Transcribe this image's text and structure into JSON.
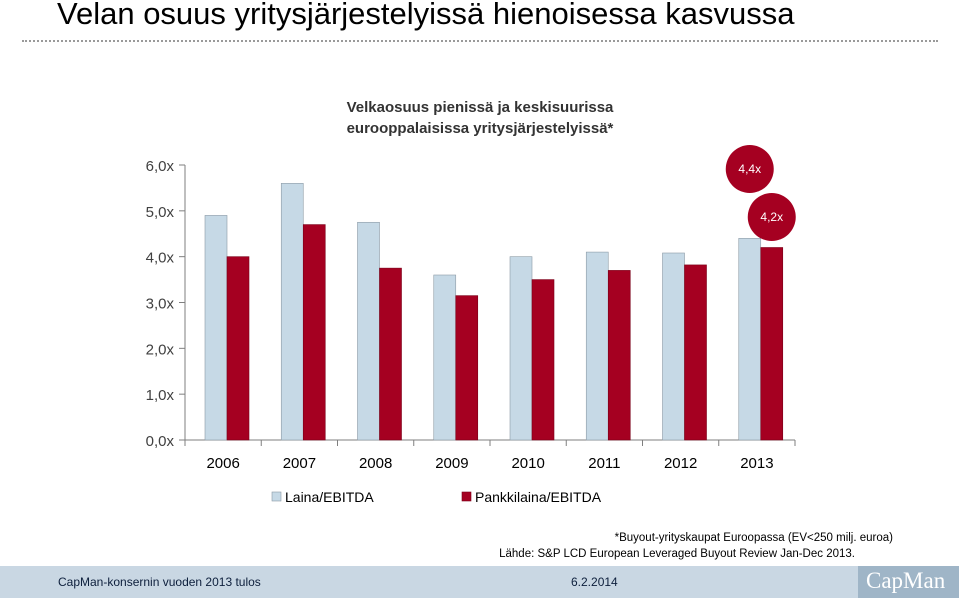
{
  "page": {
    "title": "Velan osuus yritysjärjestelyissä hienoisessa kasvussa",
    "footnote": "*Buyout-yrityskaupat Euroopassa (EV<250 milj. euroa)",
    "source": "Lähde: S&P LCD European Leveraged Buyout Review Jan-Dec 2013.",
    "footer_left": "CapMan-konsernin vuoden 2013 tulos",
    "footer_date": "6.2.2014",
    "logo": "CapMan"
  },
  "chart_data": {
    "type": "bar",
    "title": "Velkaosuus pienissä ja keskisuurissa eurooppalaisissa yritysjärjestelyissä*",
    "title_lines": [
      "Velkaosuus pienissä ja keskisuurissa",
      "eurooppalaisissa yritysjärjestelyissä*"
    ],
    "categories": [
      "2006",
      "2007",
      "2008",
      "2009",
      "2010",
      "2011",
      "2012",
      "2013"
    ],
    "series": [
      {
        "name": "Laina/EBITDA",
        "color": "#c6d9e6",
        "values": [
          4.9,
          5.6,
          4.75,
          3.6,
          4.0,
          4.1,
          4.08,
          4.4
        ]
      },
      {
        "name": "Pankkilaina/EBITDA",
        "color": "#a50021",
        "values": [
          4.0,
          4.7,
          3.75,
          3.15,
          3.5,
          3.7,
          3.82,
          4.2
        ]
      }
    ],
    "ylim": [
      0,
      6
    ],
    "yticks": [
      "0,0x",
      "1,0x",
      "2,0x",
      "3,0x",
      "4,0x",
      "5,0x",
      "6,0x"
    ],
    "annotations": [
      {
        "text": "4,4x",
        "series": 0,
        "category": "2013"
      },
      {
        "text": "4,2x",
        "series": 1,
        "category": "2013"
      }
    ],
    "legend_position": "bottom",
    "grid": false
  }
}
